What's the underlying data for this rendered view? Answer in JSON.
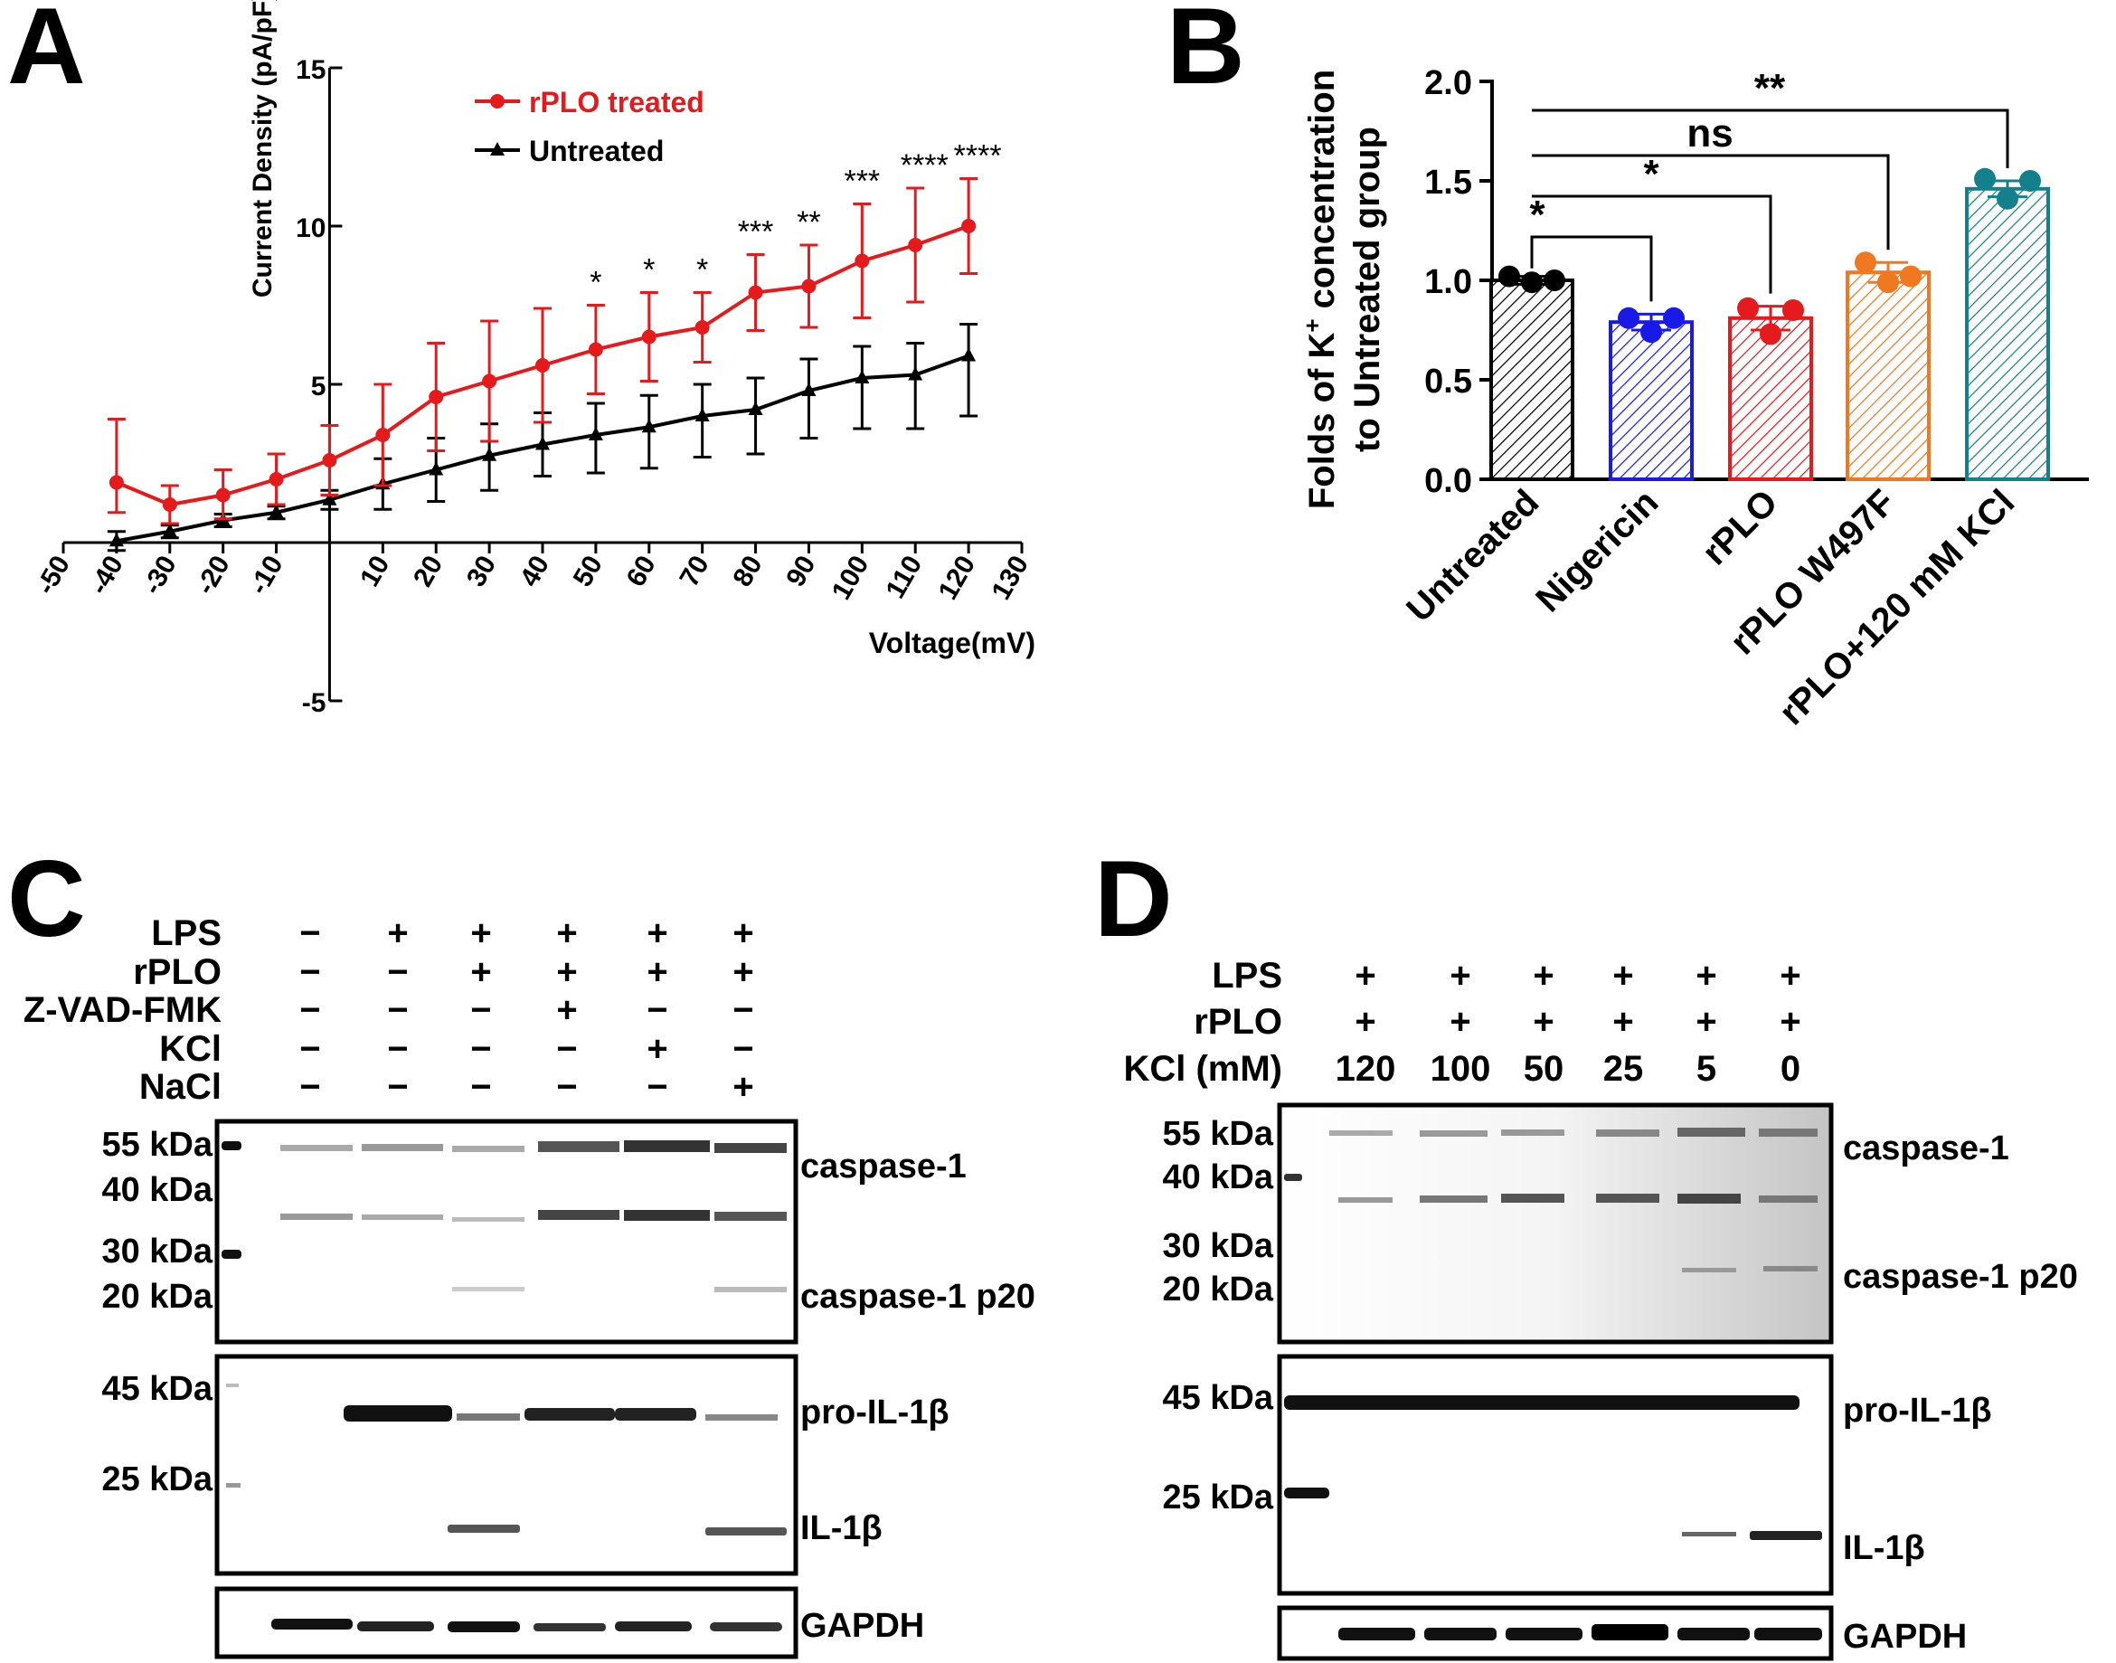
{
  "panels": {
    "a": "A",
    "b": "B",
    "c": "C",
    "d": "D"
  },
  "chart_data": [
    {
      "type": "line",
      "panel": "A",
      "ylabel": "Current Density (pA/pF)",
      "xlabel": "Voltage(mV)",
      "xlim": [
        -50,
        130
      ],
      "ylim": [
        -5,
        15
      ],
      "x_ticks": [
        "-50",
        "-40",
        "-30",
        "-20",
        "-10",
        "10",
        "20",
        "30",
        "40",
        "50",
        "60",
        "70",
        "80",
        "90",
        "100",
        "110",
        "120",
        "130"
      ],
      "y_ticks": [
        "-5",
        "5",
        "10",
        "15"
      ],
      "legend_position": "top-center",
      "series": [
        {
          "name": "rPLO treated",
          "color": "#e41a1c",
          "marker": "circle",
          "x": [
            -40,
            -30,
            -20,
            -10,
            0,
            10,
            20,
            30,
            40,
            50,
            60,
            70,
            80,
            90,
            100,
            110,
            120
          ],
          "y": [
            1.9,
            1.2,
            1.5,
            2.0,
            2.6,
            3.4,
            4.6,
            5.1,
            5.6,
            6.1,
            6.5,
            6.8,
            7.9,
            8.1,
            8.9,
            9.4,
            10.0
          ],
          "err": [
            2.0,
            0.6,
            0.8,
            0.8,
            1.1,
            1.6,
            1.7,
            1.9,
            1.8,
            1.4,
            1.4,
            1.1,
            1.2,
            1.3,
            1.8,
            1.8,
            1.5
          ]
        },
        {
          "name": "Untreated",
          "color": "#000000",
          "marker": "triangle",
          "x": [
            -40,
            -30,
            -20,
            -10,
            0,
            10,
            20,
            30,
            40,
            50,
            60,
            70,
            80,
            90,
            100,
            110,
            120
          ],
          "y": [
            0.05,
            0.35,
            0.7,
            0.95,
            1.35,
            1.85,
            2.3,
            2.75,
            3.1,
            3.4,
            3.65,
            4.0,
            4.2,
            4.8,
            5.2,
            5.3,
            5.9
          ],
          "err": [
            0.3,
            0.2,
            0.2,
            0.2,
            0.3,
            0.8,
            1.0,
            1.1,
            1.0,
            1.2,
            1.3,
            1.3,
            1.4,
            1.5,
            1.6,
            1.7,
            1.9
          ]
        }
      ],
      "significance": [
        {
          "x": 50,
          "label": "*"
        },
        {
          "x": 60,
          "label": "*"
        },
        {
          "x": 70,
          "label": "*"
        },
        {
          "x": 80,
          "label": "***"
        },
        {
          "x": 90,
          "label": "**"
        },
        {
          "x": 100,
          "label": "***"
        },
        {
          "x": 110,
          "label": "****"
        },
        {
          "x": 120,
          "label": "****"
        }
      ]
    },
    {
      "type": "bar",
      "panel": "B",
      "ylabel_line1": "Folds of K",
      "ylabel_sup": "+",
      "ylabel_line1_rest": " concentration",
      "ylabel_line2": "to Untreated group",
      "ylim": [
        0,
        2.0
      ],
      "y_ticks": [
        "0.0",
        "0.5",
        "1.0",
        "1.5",
        "2.0"
      ],
      "categories": [
        "Untreated",
        "Nigericin",
        "rPLO",
        "rPLO W497F",
        "rPLO+120 mM KCl"
      ],
      "values": [
        1.0,
        0.79,
        0.81,
        1.04,
        1.46
      ],
      "errors": [
        0.02,
        0.04,
        0.06,
        0.05,
        0.04
      ],
      "colors": [
        "#000000",
        "#1a1ae6",
        "#e41a1c",
        "#f07820",
        "#14808c"
      ],
      "points": [
        [
          1.02,
          0.99,
          1.0
        ],
        [
          0.81,
          0.74,
          0.81
        ],
        [
          0.86,
          0.73,
          0.85
        ],
        [
          1.09,
          0.99,
          1.02
        ],
        [
          1.51,
          1.41,
          1.5
        ]
      ],
      "comparisons": [
        {
          "from": 0,
          "to": 1,
          "label": "*"
        },
        {
          "from": 0,
          "to": 2,
          "label": "*"
        },
        {
          "from": 0,
          "to": 3,
          "label": "ns"
        },
        {
          "from": 0,
          "to": 4,
          "label": "**"
        }
      ]
    }
  ],
  "blot_c": {
    "conditions": [
      {
        "name": "LPS",
        "values": [
          "−",
          "+",
          "+",
          "+",
          "+",
          "+"
        ]
      },
      {
        "name": "rPLO",
        "values": [
          "−",
          "−",
          "+",
          "+",
          "+",
          "+"
        ]
      },
      {
        "name": "Z-VAD-FMK",
        "values": [
          "−",
          "−",
          "−",
          "+",
          "−",
          "−"
        ]
      },
      {
        "name": "KCl",
        "values": [
          "−",
          "−",
          "−",
          "−",
          "+",
          "−"
        ]
      },
      {
        "name": "NaCl",
        "values": [
          "−",
          "−",
          "−",
          "−",
          "−",
          "+"
        ]
      }
    ],
    "markers_top": [
      "55 kDa",
      "40 kDa",
      "30 kDa",
      "20 kDa"
    ],
    "markers_mid": [
      "45 kDa",
      "25 kDa"
    ],
    "labels": [
      "caspase-1",
      "caspase-1 p20",
      "pro-IL-1β",
      "IL-1β",
      "GAPDH"
    ]
  },
  "blot_d": {
    "conditions": [
      {
        "name": "LPS",
        "values": [
          "+",
          "+",
          "+",
          "+",
          "+",
          "+"
        ]
      },
      {
        "name": "rPLO",
        "values": [
          "+",
          "+",
          "+",
          "+",
          "+",
          "+"
        ]
      },
      {
        "name": "KCl (mM)",
        "values": [
          "120",
          "100",
          "50",
          "25",
          "5",
          "0"
        ]
      }
    ],
    "markers_top": [
      "55 kDa",
      "40 kDa",
      "30 kDa",
      "20 kDa"
    ],
    "markers_mid": [
      "45 kDa",
      "25 kDa"
    ],
    "labels": [
      "caspase-1",
      "caspase-1 p20",
      "pro-IL-1β",
      "IL-1β",
      "GAPDH"
    ]
  }
}
